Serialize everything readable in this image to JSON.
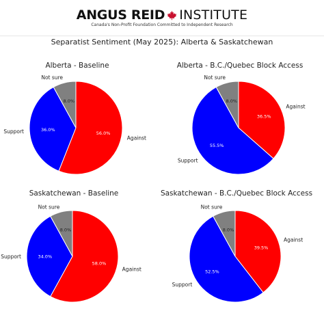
{
  "header": {
    "brand": "ANGUS REID",
    "institute": "INSTITUTE",
    "tagline": "Canada's Non-Profit Foundation Committed to Independent Research",
    "leaf_icon": "maple-leaf-icon",
    "leaf_color": "#c8102e"
  },
  "chart_data": {
    "title": "Separatist Sentiment (May 2025): Alberta & Saskatchewan",
    "colors": {
      "Against": "#ff0000",
      "Support": "#0000ff",
      "Not sure": "#808080"
    },
    "charts": [
      {
        "type": "pie",
        "title": "Alberta - Baseline",
        "slices": [
          {
            "label": "Against",
            "value": 56.0,
            "display": "56.0%"
          },
          {
            "label": "Support",
            "value": 36.0,
            "display": "36.0%"
          },
          {
            "label": "Not sure",
            "value": 8.0,
            "display": "8.0%"
          }
        ]
      },
      {
        "type": "pie",
        "title": "Alberta - B.C./Quebec Block Access",
        "slices": [
          {
            "label": "Against",
            "value": 36.5,
            "display": "36.5%"
          },
          {
            "label": "Support",
            "value": 55.5,
            "display": "55.5%"
          },
          {
            "label": "Not sure",
            "value": 8.0,
            "display": "8.0%"
          }
        ]
      },
      {
        "type": "pie",
        "title": "Saskatchewan - Baseline",
        "slices": [
          {
            "label": "Against",
            "value": 58.0,
            "display": "58.0%"
          },
          {
            "label": "Support",
            "value": 34.0,
            "display": "34.0%"
          },
          {
            "label": "Not sure",
            "value": 8.0,
            "display": "8.0%"
          }
        ]
      },
      {
        "type": "pie",
        "title": "Saskatchewan - B.C./Quebec Block Access",
        "slices": [
          {
            "label": "Against",
            "value": 39.5,
            "display": "39.5%"
          },
          {
            "label": "Support",
            "value": 52.5,
            "display": "52.5%"
          },
          {
            "label": "Not sure",
            "value": 8.0,
            "display": "8.0%"
          }
        ]
      }
    ]
  }
}
